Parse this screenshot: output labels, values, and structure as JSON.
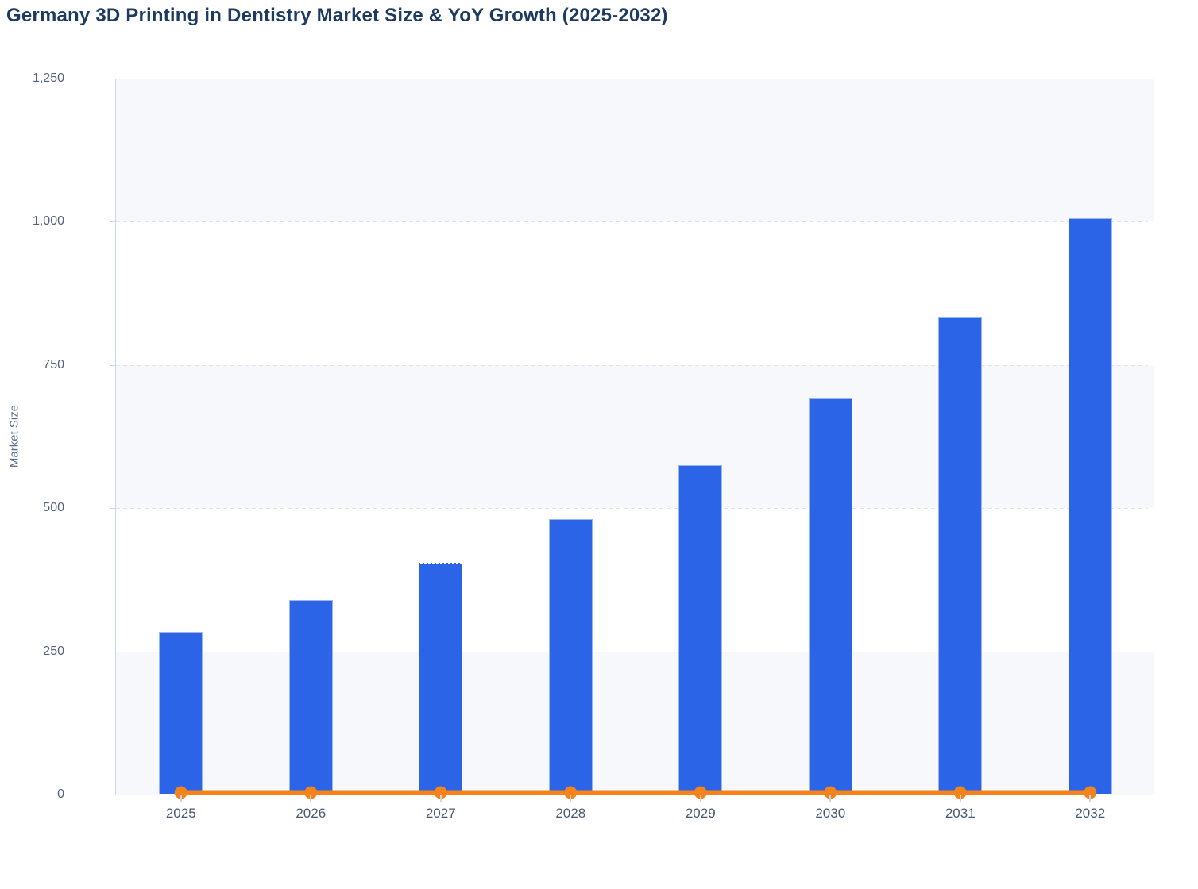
{
  "header": {
    "title": "Germany 3D Printing in Dentistry Market Size & YoY Growth (2025-2032)"
  },
  "chart_data": {
    "type": "bar",
    "subtype": "bar + flat line combo",
    "title": "Germany 3D Printing in Dentistry Market Size & YoY Growth (2025-2032)",
    "categories": [
      "2025",
      "2026",
      "2027",
      "2028",
      "2029",
      "2030",
      "2031",
      "2032"
    ],
    "series": [
      {
        "name": "Market Size",
        "type": "bar",
        "values": [
          283,
          338,
          403,
          480,
          574,
          690,
          833,
          1005
        ],
        "color": "#2c64e8"
      },
      {
        "name": "YoY Growth",
        "type": "line",
        "values": [
          0,
          0,
          0,
          0,
          0,
          0,
          0,
          0
        ],
        "color": "#f6821a",
        "note": "rendered as a flat orange line with round markers along the zero baseline"
      }
    ],
    "xlabel": "",
    "ylabel": "Market Size",
    "ylim": [
      0,
      1250
    ],
    "y_ticks": [
      0,
      250,
      500,
      750,
      1000,
      1250
    ],
    "y_tick_labels": [
      "0",
      "250",
      "500",
      "750",
      "1,000",
      "1,250"
    ],
    "grid": "horizontal dashed gridlines at every 250, alternating shaded bands",
    "legend_position": "none",
    "annotations": {
      "dotted_top_edge_bar": "2027"
    }
  },
  "colors": {
    "title": "#1d3a5f",
    "bar": "#2c64e8",
    "bar_edge": "#acc6f4",
    "line": "#f6821a",
    "axis": "#c9d6ee",
    "gridline": "#dfe3ec",
    "band": "#f6f8fb",
    "y_tick_label": "#55617c",
    "x_tick_label": "#4a5872",
    "axis_title": "#5c6b85",
    "background": "#ffffff"
  }
}
